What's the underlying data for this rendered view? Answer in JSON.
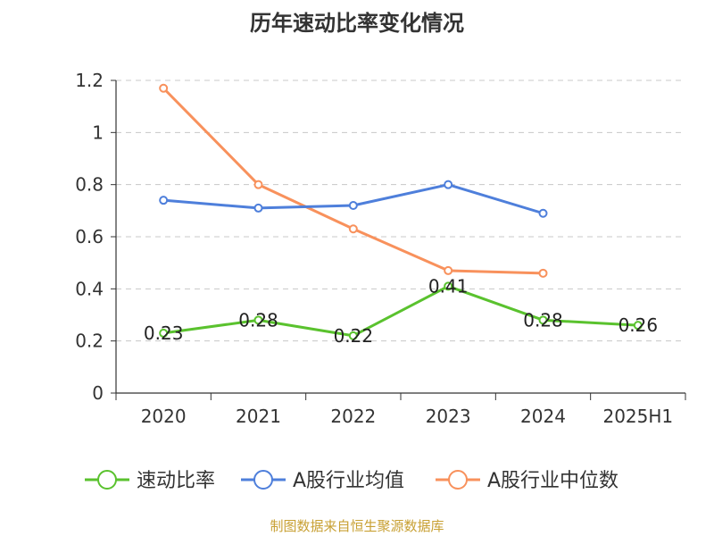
{
  "chart_data": {
    "type": "line",
    "title": "历年速动比率变化情况",
    "categories": [
      "2020",
      "2021",
      "2022",
      "2023",
      "2024",
      "2025H1"
    ],
    "ylim": [
      0,
      1.2
    ],
    "yticks": [
      "0",
      "0.2",
      "0.4",
      "0.6",
      "0.8",
      "1",
      "1.2"
    ],
    "grid": true,
    "legend_position": "bottom",
    "series": [
      {
        "name": "速动比率",
        "color": "#5ac22e",
        "values": [
          0.23,
          0.28,
          0.22,
          0.41,
          0.28,
          0.26
        ],
        "labels": [
          "0.23",
          "0.28",
          "0.22",
          "0.41",
          "0.28",
          "0.26"
        ]
      },
      {
        "name": "A股行业均值",
        "color": "#4e7fdb",
        "values": [
          0.74,
          0.71,
          0.72,
          0.8,
          0.69,
          null
        ]
      },
      {
        "name": "A股行业中位数",
        "color": "#f8915c",
        "values": [
          1.17,
          0.8,
          0.63,
          0.47,
          0.46,
          null
        ]
      }
    ]
  },
  "footer": {
    "source": "制图数据来自恒生聚源数据库",
    "source_color": "#c8a033"
  }
}
